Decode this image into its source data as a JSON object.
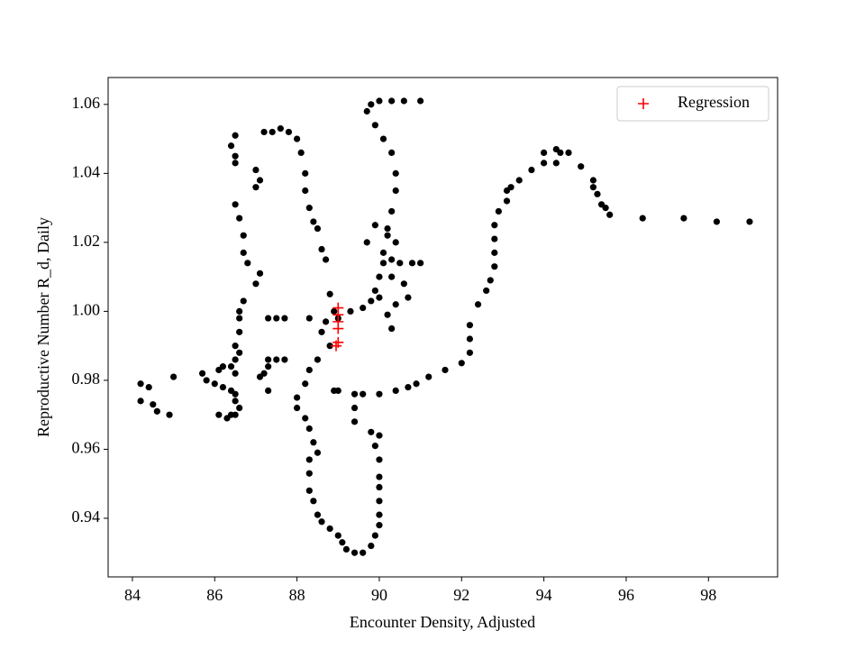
{
  "chart_data": {
    "type": "scatter",
    "xlabel": "Encounter Density, Adjusted",
    "ylabel": "Reproductive Number R_d, Daily",
    "xlim": [
      83.41,
      99.68
    ],
    "ylim": [
      0.923,
      1.0678
    ],
    "xticks": [
      84,
      86,
      88,
      90,
      92,
      94,
      96,
      98
    ],
    "yticks": [
      0.94,
      0.96,
      0.98,
      {
        "value": 1,
        "label": "1.00"
      },
      1.02,
      1.04,
      1.06
    ],
    "legend": "upper right",
    "series": [
      {
        "color": "#000000",
        "marker": "o",
        "x": [
          84.2,
          84.2,
          84.4,
          84.5,
          84.6,
          84.9,
          85.0,
          85.7,
          85.8,
          86.0,
          86.2,
          86.1,
          86.2,
          86.4,
          86.5,
          86.4,
          86.5,
          86.4,
          86.1,
          86.3,
          86.5,
          86.6,
          86.5,
          86.5,
          86.6,
          86.5,
          86.6,
          86.6,
          86.6,
          86.7,
          86.4,
          86.5,
          86.5,
          86.5,
          86.5,
          86.6,
          86.7,
          86.7,
          86.8,
          87.0,
          87.1,
          87.0,
          87.1,
          87.0,
          87.1,
          87.2,
          87.3,
          87.3,
          87.5,
          87.7,
          87.3,
          87.5,
          87.7,
          87.3,
          87.2,
          87.4,
          87.6,
          87.8,
          88.0,
          88.1,
          88.2,
          88.2,
          88.3,
          88.4,
          88.5,
          88.6,
          88.7,
          88.8,
          88.9,
          89.0,
          89.3,
          89.6,
          89.8,
          89.9,
          90.0,
          90.1,
          90.2,
          90.3,
          90.4,
          90.4,
          90.3,
          90.1,
          89.9,
          89.7,
          89.8,
          90.0,
          90.3,
          90.6,
          91.0,
          90.1,
          90.3,
          90.5,
          90.8,
          91.0,
          90.4,
          90.2,
          90.3,
          90.6,
          90.7,
          90.4,
          90.0,
          90.2,
          90.3,
          89.7,
          89.9,
          88.3,
          88.7,
          88.5,
          88.3,
          88.2,
          88.0,
          88.0,
          88.2,
          88.3,
          88.4,
          88.5,
          88.3,
          88.3,
          88.3,
          88.4,
          88.5,
          88.6,
          88.8,
          89.0,
          89.1,
          89.2,
          89.4,
          89.6,
          89.8,
          89.9,
          90.0,
          90.0,
          90.0,
          90.0,
          90.0,
          90.0,
          89.9,
          89.8,
          90.0,
          89.4,
          89.4,
          89.4,
          89.6,
          90.0,
          90.4,
          90.7,
          90.9,
          91.2,
          91.6,
          92.0,
          92.2,
          92.2,
          92.2,
          92.4,
          92.6,
          92.7,
          92.8,
          92.8,
          92.8,
          92.8,
          92.9,
          93.1,
          93.1,
          93.2,
          93.4,
          93.7,
          94.0,
          94.0,
          94.3,
          94.4,
          94.6,
          94.3,
          94.9,
          95.2,
          95.2,
          95.3,
          95.4,
          95.5,
          95.6,
          96.4,
          97.4,
          98.2,
          99.0,
          88.9,
          89.0,
          88.6,
          88.8
        ],
        "y": [
          0.979,
          0.974,
          0.978,
          0.973,
          0.971,
          0.97,
          0.981,
          0.982,
          0.98,
          0.979,
          0.978,
          0.983,
          0.984,
          0.984,
          0.982,
          0.977,
          0.974,
          0.97,
          0.97,
          0.969,
          0.97,
          0.972,
          0.976,
          0.986,
          0.988,
          0.99,
          0.994,
          0.998,
          1.0,
          1.003,
          1.048,
          1.051,
          1.045,
          1.043,
          1.031,
          1.027,
          1.022,
          1.017,
          1.014,
          1.008,
          1.011,
          1.036,
          1.038,
          1.041,
          0.981,
          0.982,
          0.984,
          0.986,
          0.986,
          0.986,
          0.998,
          0.998,
          0.998,
          0.977,
          1.052,
          1.052,
          1.053,
          1.052,
          1.05,
          1.046,
          1.04,
          1.035,
          1.03,
          1.026,
          1.024,
          1.018,
          1.015,
          1.005,
          1.0,
          0.998,
          1.0,
          1.001,
          1.003,
          1.006,
          1.01,
          1.017,
          1.024,
          1.029,
          1.035,
          1.04,
          1.046,
          1.05,
          1.054,
          1.058,
          1.06,
          1.061,
          1.061,
          1.061,
          1.061,
          1.014,
          1.015,
          1.014,
          1.014,
          1.014,
          1.02,
          1.022,
          1.01,
          1.008,
          1.004,
          1.002,
          1.004,
          0.999,
          0.995,
          1.02,
          1.025,
          0.998,
          0.997,
          0.986,
          0.983,
          0.979,
          0.975,
          0.972,
          0.969,
          0.966,
          0.962,
          0.959,
          0.957,
          0.953,
          0.948,
          0.945,
          0.941,
          0.939,
          0.937,
          0.935,
          0.933,
          0.931,
          0.93,
          0.93,
          0.932,
          0.935,
          0.938,
          0.941,
          0.945,
          0.949,
          0.952,
          0.957,
          0.961,
          0.965,
          0.964,
          0.968,
          0.972,
          0.976,
          0.976,
          0.976,
          0.977,
          0.978,
          0.979,
          0.981,
          0.983,
          0.985,
          0.988,
          0.992,
          0.996,
          1.002,
          1.006,
          1.009,
          1.013,
          1.017,
          1.021,
          1.025,
          1.029,
          1.032,
          1.035,
          1.036,
          1.038,
          1.041,
          1.043,
          1.046,
          1.047,
          1.046,
          1.046,
          1.043,
          1.042,
          1.038,
          1.036,
          1.034,
          1.031,
          1.03,
          1.028,
          1.027,
          1.027,
          1.026,
          1.026,
          0.977,
          0.977,
          0.994,
          0.99
        ]
      },
      {
        "name": "Regression",
        "color": "#ff0000",
        "marker": "+",
        "x": [
          89.0,
          89.0,
          89.0,
          89.0,
          89.0,
          88.95
        ],
        "y": [
          1.001,
          0.999,
          0.997,
          0.995,
          0.991,
          0.99
        ]
      }
    ]
  }
}
